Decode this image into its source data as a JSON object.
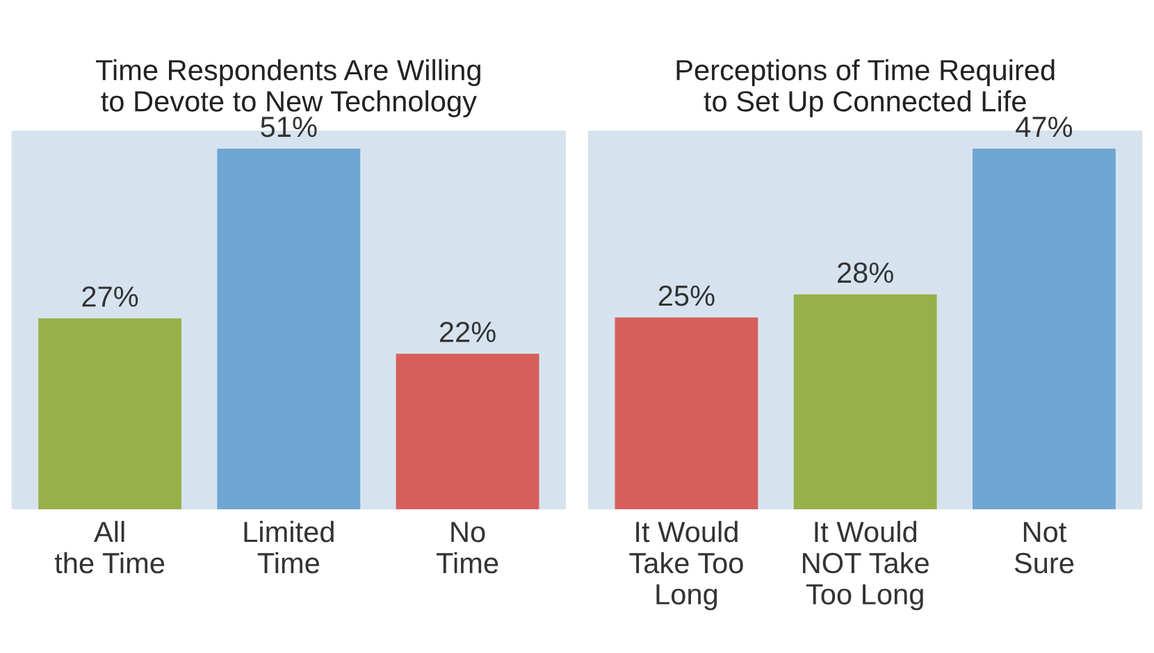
{
  "chart_data": [
    {
      "type": "bar",
      "title": "Time Respondents Are Willing\nto Devote to New Technology",
      "categories": [
        "All\nthe Time",
        "Limited\nTime",
        "No\nTime"
      ],
      "values": [
        27,
        51,
        22
      ],
      "colors": [
        "#97b04a",
        "#6fa6d3",
        "#d65f5a"
      ],
      "value_labels": [
        "27%",
        "51%",
        "22%"
      ],
      "grid": false,
      "legend": false
    },
    {
      "type": "bar",
      "title": "Perceptions of Time Required\nto Set Up Connected Life",
      "categories": [
        "It Would\nTake Too\nLong",
        "It Would\nNOT Take\nToo Long",
        "Not\nSure"
      ],
      "values": [
        25,
        28,
        47
      ],
      "colors": [
        "#d65f5a",
        "#97b04a",
        "#6fa6d3"
      ],
      "value_labels": [
        "25%",
        "28%",
        "47%"
      ],
      "grid": false,
      "legend": false
    }
  ]
}
